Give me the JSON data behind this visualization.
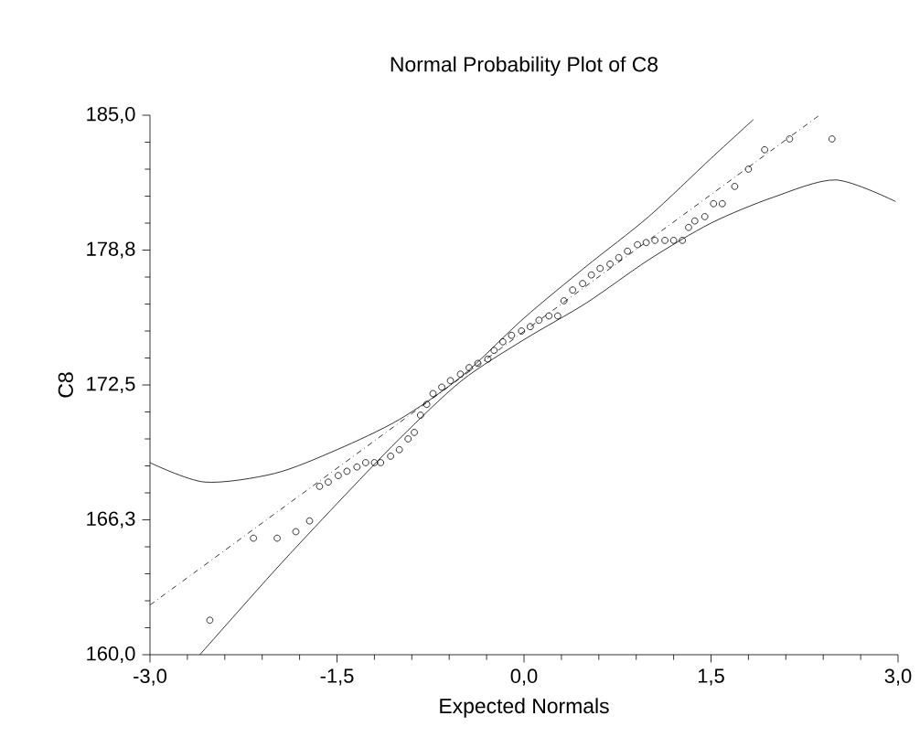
{
  "chart_data": {
    "type": "scatter",
    "title": "Normal Probability Plot of C8",
    "xlabel": "Expected Normals",
    "ylabel": "C8",
    "xlim": [
      -3,
      3
    ],
    "ylim": [
      160,
      185
    ],
    "xticks": [
      {
        "value": -3,
        "label": "-3,0"
      },
      {
        "value": -1.5,
        "label": "-1,5"
      },
      {
        "value": 0,
        "label": "0,0"
      },
      {
        "value": 1.5,
        "label": "1,5"
      },
      {
        "value": 3,
        "label": "3,0"
      }
    ],
    "yticks": [
      {
        "value": 160,
        "label": "160,0"
      },
      {
        "value": 166.25,
        "label": "166,3"
      },
      {
        "value": 172.5,
        "label": "172,5"
      },
      {
        "value": 178.75,
        "label": "178,8"
      },
      {
        "value": 185,
        "label": "185,0"
      }
    ],
    "grid": false,
    "series": [
      {
        "color": "#000000",
        "marker": "circle",
        "x": [
          -2.52,
          -2.17,
          -1.98,
          -1.83,
          -1.72,
          -1.64,
          -1.57,
          -1.49,
          -1.42,
          -1.34,
          -1.27,
          -1.2,
          -1.15,
          -1.07,
          -1.0,
          -0.93,
          -0.88,
          -0.83,
          -0.78,
          -0.73,
          -0.66,
          -0.59,
          -0.51,
          -0.44,
          -0.37,
          -0.29,
          -0.24,
          -0.17,
          -0.1,
          -0.02,
          0.05,
          0.12,
          0.2,
          0.27,
          0.32,
          0.39,
          0.47,
          0.54,
          0.61,
          0.69,
          0.76,
          0.83,
          0.91,
          0.98,
          1.05,
          1.13,
          1.2,
          1.27,
          1.32,
          1.37,
          1.45,
          1.52,
          1.59,
          1.69,
          1.8,
          1.93,
          2.13,
          2.47
        ],
        "values": [
          161.6,
          165.4,
          165.4,
          165.7,
          166.2,
          167.8,
          168.0,
          168.3,
          168.5,
          168.7,
          168.9,
          168.9,
          168.9,
          169.2,
          169.5,
          170.0,
          170.3,
          171.1,
          171.6,
          172.1,
          172.4,
          172.7,
          173.0,
          173.3,
          173.5,
          173.7,
          174.1,
          174.5,
          174.8,
          175.0,
          175.2,
          175.5,
          175.7,
          175.7,
          176.4,
          176.9,
          177.2,
          177.6,
          177.9,
          178.1,
          178.4,
          178.7,
          179.0,
          179.1,
          179.2,
          179.2,
          179.2,
          179.2,
          179.8,
          180.1,
          180.3,
          180.9,
          180.9,
          181.7,
          182.5,
          183.4,
          183.9,
          183.9
        ]
      },
      {
        "type": "line",
        "color": "#000000",
        "marker": "none",
        "line_style": "dashed",
        "x": [
          -3,
          2.37
        ],
        "values": [
          162.3,
          185.0
        ]
      },
      {
        "type": "line",
        "color": "#000000",
        "marker": "none",
        "line_style": "solid",
        "x": [
          -3,
          -2.56,
          -2,
          -1.5,
          -1,
          -0.5,
          0,
          0.5,
          1,
          1.5,
          1.84
        ],
        "values": [
          168.9,
          168.0,
          168.4,
          169.5,
          170.9,
          172.9,
          175.6,
          178.0,
          180.3,
          183.0,
          184.8
        ]
      },
      {
        "type": "line",
        "color": "#000000",
        "marker": "none",
        "line_style": "solid",
        "x": [
          -2.6,
          -2,
          -1.5,
          -1,
          -0.5,
          0,
          0.5,
          1,
          1.5,
          2,
          2.5,
          2.98
        ],
        "values": [
          160.0,
          163.9,
          167.0,
          170.0,
          172.7,
          174.6,
          176.3,
          178.3,
          180.0,
          181.2,
          182.0,
          181.0
        ]
      }
    ]
  }
}
